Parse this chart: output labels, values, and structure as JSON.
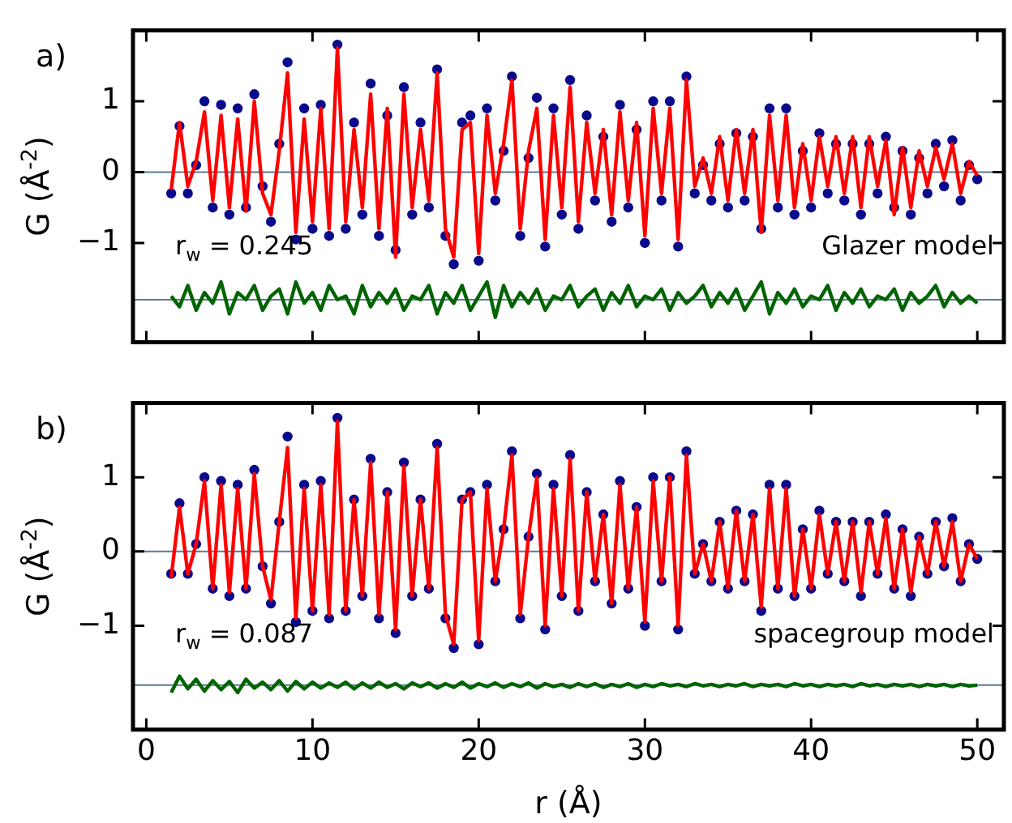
{
  "chart_data": [
    {
      "type": "scatter",
      "ylabel": "G (Å$^{-2}$)",
      "annotations": [
        "a)",
        "r$_{w}$ = 0.245",
        "Glazer model"
      ],
      "xlim": [
        -0.8,
        51.6
      ],
      "ylim": [
        -2.4,
        2.0
      ],
      "xticks": [
        0,
        10,
        20,
        30,
        40,
        50
      ],
      "yticks": [
        -1,
        0,
        1
      ],
      "tick_labels": "y",
      "line_style": "solid",
      "ref_lines": [
        {
          "axis": "y",
          "value": 0,
          "color": "#5a7a9a"
        },
        {
          "axis": "y",
          "value": -1.8,
          "color": "#5a7a9a"
        }
      ],
      "x": [
        1.5,
        2,
        2.5,
        3,
        3.5,
        4,
        4.5,
        5,
        5.5,
        6,
        6.5,
        7,
        7.5,
        8,
        8.5,
        9,
        9.5,
        10,
        10.5,
        11,
        11.5,
        12,
        12.5,
        13,
        13.5,
        14,
        14.5,
        15,
        15.5,
        16,
        16.5,
        17,
        17.5,
        18,
        18.5,
        19,
        19.5,
        20,
        20.5,
        21,
        21.5,
        22,
        22.5,
        23,
        23.5,
        24,
        24.5,
        25,
        25.5,
        26,
        26.5,
        27,
        27.5,
        28,
        28.5,
        29,
        29.5,
        30,
        30.5,
        31,
        31.5,
        32,
        32.5,
        33,
        33.5,
        34,
        34.5,
        35,
        35.5,
        36,
        36.5,
        37,
        37.5,
        38,
        38.5,
        39,
        39.5,
        40,
        40.5,
        41,
        41.5,
        42,
        42.5,
        43,
        43.5,
        44,
        44.5,
        45,
        45.5,
        46,
        46.5,
        47,
        47.5,
        48,
        48.5,
        49,
        49.5,
        50
      ],
      "series": [
        {
          "type": "scatter",
          "marker": "circle",
          "color": "#0a0a8c",
          "values": [
            -0.3,
            0.65,
            -0.3,
            0.1,
            1.0,
            -0.5,
            0.95,
            -0.6,
            0.9,
            -0.5,
            1.1,
            -0.2,
            -0.7,
            0.4,
            1.55,
            -0.95,
            0.9,
            -0.8,
            0.95,
            -0.9,
            1.8,
            -0.8,
            0.7,
            -0.6,
            1.25,
            -0.9,
            0.8,
            -1.1,
            1.2,
            -0.6,
            0.7,
            -0.5,
            1.45,
            -0.9,
            -1.3,
            0.7,
            0.8,
            -1.25,
            0.9,
            -0.4,
            0.3,
            1.35,
            -0.9,
            0.2,
            1.05,
            -1.05,
            0.9,
            -0.6,
            1.3,
            -0.8,
            0.8,
            -0.4,
            0.5,
            -0.7,
            0.95,
            -0.5,
            0.6,
            -1.0,
            1.0,
            -0.4,
            1.0,
            -1.05,
            1.35,
            -0.3,
            0.1,
            -0.4,
            0.4,
            -0.5,
            0.55,
            -0.4,
            0.5,
            -0.8,
            0.9,
            -0.5,
            0.9,
            -0.6,
            0.3,
            -0.5,
            0.55,
            -0.3,
            0.4,
            -0.4,
            0.4,
            -0.6,
            0.4,
            -0.3,
            0.5,
            -0.5,
            0.3,
            -0.6,
            0.2,
            -0.3,
            0.4,
            -0.2,
            0.45,
            -0.4,
            0.1,
            -0.1
          ]
        },
        {
          "type": "line",
          "marker": "none",
          "color": "#ff0000",
          "values": [
            -0.25,
            0.7,
            -0.2,
            0.15,
            0.85,
            -0.4,
            0.8,
            -0.5,
            0.75,
            -0.55,
            1.0,
            -0.3,
            -0.6,
            0.3,
            1.4,
            -0.85,
            0.75,
            -0.7,
            0.9,
            -0.8,
            1.75,
            -0.7,
            0.6,
            -0.5,
            1.1,
            -0.8,
            0.9,
            -1.2,
            1.1,
            -0.5,
            0.6,
            -0.4,
            1.4,
            -0.8,
            -1.2,
            0.6,
            0.7,
            -1.15,
            0.8,
            -0.3,
            0.4,
            1.3,
            -0.8,
            0.3,
            0.9,
            -0.95,
            0.8,
            -0.5,
            1.2,
            -0.7,
            0.7,
            -0.3,
            0.6,
            -0.6,
            0.85,
            -0.4,
            0.7,
            -0.9,
            0.9,
            -0.3,
            0.9,
            -0.95,
            1.3,
            -0.2,
            0.2,
            -0.3,
            0.5,
            -0.4,
            0.6,
            -0.3,
            0.6,
            -0.85,
            0.8,
            -0.4,
            0.8,
            -0.5,
            0.4,
            -0.4,
            0.5,
            -0.2,
            0.5,
            -0.3,
            0.5,
            -0.5,
            0.5,
            -0.2,
            0.45,
            -0.6,
            0.35,
            -0.5,
            0.3,
            -0.2,
            0.35,
            -0.1,
            0.4,
            -0.3,
            0.15,
            -0.05
          ]
        },
        {
          "type": "line",
          "marker": "none",
          "color": "#006400",
          "values": [
            -1.75,
            -1.9,
            -1.6,
            -1.95,
            -1.7,
            -1.85,
            -1.55,
            -2.0,
            -1.7,
            -1.8,
            -1.6,
            -1.95,
            -1.75,
            -1.65,
            -2.0,
            -1.55,
            -1.85,
            -1.7,
            -1.95,
            -1.6,
            -1.8,
            -1.75,
            -2.0,
            -1.6,
            -1.9,
            -1.7,
            -1.85,
            -1.65,
            -1.95,
            -1.75,
            -1.8,
            -1.6,
            -2.0,
            -1.7,
            -1.85,
            -1.6,
            -1.95,
            -1.75,
            -1.55,
            -2.05,
            -1.6,
            -1.9,
            -1.7,
            -1.85,
            -1.65,
            -1.95,
            -1.75,
            -1.8,
            -1.6,
            -1.9,
            -1.75,
            -1.65,
            -1.95,
            -1.7,
            -1.85,
            -1.6,
            -1.9,
            -1.75,
            -1.8,
            -1.65,
            -1.95,
            -1.7,
            -1.85,
            -1.75,
            -1.6,
            -1.9,
            -1.7,
            -1.85,
            -1.65,
            -1.95,
            -1.75,
            -1.55,
            -2.0,
            -1.7,
            -1.85,
            -1.65,
            -1.9,
            -1.75,
            -1.8,
            -1.6,
            -1.95,
            -1.7,
            -1.85,
            -1.65,
            -1.9,
            -1.75,
            -1.8,
            -1.65,
            -1.95,
            -1.7,
            -1.85,
            -1.75,
            -1.6,
            -1.9,
            -1.7,
            -1.85,
            -1.75,
            -1.85
          ]
        }
      ]
    },
    {
      "type": "scatter",
      "ylabel": "G (Å$^{-2}$)",
      "xlabel": "r (Å)",
      "annotations": [
        "b)",
        "r$_{w}$ = 0.087",
        "spacegroup model"
      ],
      "xlim": [
        -0.8,
        51.6
      ],
      "ylim": [
        -2.4,
        2.0
      ],
      "xticks": [
        0,
        10,
        20,
        30,
        40,
        50
      ],
      "yticks": [
        -1,
        0,
        1
      ],
      "line_style": "solid",
      "ref_lines": [
        {
          "axis": "y",
          "value": 0,
          "color": "#5a7a9a"
        },
        {
          "axis": "y",
          "value": -1.8,
          "color": "#5a7a9a"
        }
      ],
      "x": [
        1.5,
        2,
        2.5,
        3,
        3.5,
        4,
        4.5,
        5,
        5.5,
        6,
        6.5,
        7,
        7.5,
        8,
        8.5,
        9,
        9.5,
        10,
        10.5,
        11,
        11.5,
        12,
        12.5,
        13,
        13.5,
        14,
        14.5,
        15,
        15.5,
        16,
        16.5,
        17,
        17.5,
        18,
        18.5,
        19,
        19.5,
        20,
        20.5,
        21,
        21.5,
        22,
        22.5,
        23,
        23.5,
        24,
        24.5,
        25,
        25.5,
        26,
        26.5,
        27,
        27.5,
        28,
        28.5,
        29,
        29.5,
        30,
        30.5,
        31,
        31.5,
        32,
        32.5,
        33,
        33.5,
        34,
        34.5,
        35,
        35.5,
        36,
        36.5,
        37,
        37.5,
        38,
        38.5,
        39,
        39.5,
        40,
        40.5,
        41,
        41.5,
        42,
        42.5,
        43,
        43.5,
        44,
        44.5,
        45,
        45.5,
        46,
        46.5,
        47,
        47.5,
        48,
        48.5,
        49,
        49.5,
        50
      ],
      "series": [
        {
          "type": "scatter",
          "marker": "circle",
          "color": "#0a0a8c",
          "values": [
            -0.3,
            0.65,
            -0.3,
            0.1,
            1.0,
            -0.5,
            0.95,
            -0.6,
            0.9,
            -0.5,
            1.1,
            -0.2,
            -0.7,
            0.4,
            1.55,
            -0.95,
            0.9,
            -0.8,
            0.95,
            -0.9,
            1.8,
            -0.8,
            0.7,
            -0.6,
            1.25,
            -0.9,
            0.8,
            -1.1,
            1.2,
            -0.6,
            0.7,
            -0.5,
            1.45,
            -0.9,
            -1.3,
            0.7,
            0.8,
            -1.25,
            0.9,
            -0.4,
            0.3,
            1.35,
            -0.9,
            0.2,
            1.05,
            -1.05,
            0.9,
            -0.6,
            1.3,
            -0.8,
            0.8,
            -0.4,
            0.5,
            -0.7,
            0.95,
            -0.5,
            0.6,
            -1.0,
            1.0,
            -0.4,
            1.0,
            -1.05,
            1.35,
            -0.3,
            0.1,
            -0.4,
            0.4,
            -0.5,
            0.55,
            -0.4,
            0.5,
            -0.8,
            0.9,
            -0.5,
            0.9,
            -0.6,
            0.3,
            -0.5,
            0.55,
            -0.3,
            0.4,
            -0.4,
            0.4,
            -0.6,
            0.4,
            -0.3,
            0.5,
            -0.5,
            0.3,
            -0.6,
            0.2,
            -0.3,
            0.4,
            -0.2,
            0.45,
            -0.4,
            0.1,
            -0.1
          ]
        },
        {
          "type": "line",
          "marker": "none",
          "color": "#ff0000",
          "values": [
            -0.35,
            0.6,
            -0.3,
            0.1,
            0.95,
            -0.5,
            0.9,
            -0.55,
            0.85,
            -0.5,
            1.05,
            -0.2,
            -0.65,
            0.4,
            1.4,
            -0.9,
            0.85,
            -0.8,
            0.9,
            -0.85,
            1.75,
            -0.8,
            0.7,
            -0.6,
            1.2,
            -0.85,
            0.8,
            -1.05,
            1.15,
            -0.6,
            0.7,
            -0.5,
            1.4,
            -0.85,
            -1.25,
            0.7,
            0.8,
            -1.2,
            0.85,
            -0.4,
            0.3,
            1.3,
            -0.85,
            0.2,
            1.0,
            -1.0,
            0.85,
            -0.6,
            1.25,
            -0.8,
            0.8,
            -0.4,
            0.5,
            -0.7,
            0.9,
            -0.5,
            0.6,
            -0.95,
            0.95,
            -0.4,
            1.0,
            -1.0,
            1.3,
            -0.3,
            0.1,
            -0.4,
            0.4,
            -0.5,
            0.55,
            -0.4,
            0.5,
            -0.75,
            0.85,
            -0.5,
            0.85,
            -0.6,
            0.3,
            -0.5,
            0.5,
            -0.3,
            0.4,
            -0.4,
            0.4,
            -0.55,
            0.4,
            -0.3,
            0.45,
            -0.5,
            0.3,
            -0.55,
            0.2,
            -0.3,
            0.4,
            -0.2,
            0.4,
            -0.4,
            0.1,
            -0.1
          ]
        },
        {
          "type": "line",
          "marker": "none",
          "color": "#006400",
          "values": [
            -1.9,
            -1.68,
            -1.85,
            -1.72,
            -1.88,
            -1.74,
            -1.86,
            -1.75,
            -1.9,
            -1.72,
            -1.84,
            -1.76,
            -1.86,
            -1.74,
            -1.88,
            -1.75,
            -1.85,
            -1.76,
            -1.84,
            -1.77,
            -1.83,
            -1.76,
            -1.85,
            -1.77,
            -1.84,
            -1.76,
            -1.83,
            -1.78,
            -1.85,
            -1.77,
            -1.82,
            -1.77,
            -1.84,
            -1.78,
            -1.83,
            -1.76,
            -1.84,
            -1.78,
            -1.82,
            -1.77,
            -1.83,
            -1.78,
            -1.82,
            -1.77,
            -1.84,
            -1.78,
            -1.82,
            -1.79,
            -1.83,
            -1.78,
            -1.82,
            -1.78,
            -1.83,
            -1.79,
            -1.82,
            -1.78,
            -1.83,
            -1.79,
            -1.82,
            -1.78,
            -1.81,
            -1.79,
            -1.82,
            -1.78,
            -1.81,
            -1.79,
            -1.82,
            -1.79,
            -1.81,
            -1.78,
            -1.82,
            -1.79,
            -1.81,
            -1.79,
            -1.82,
            -1.78,
            -1.81,
            -1.79,
            -1.82,
            -1.79,
            -1.81,
            -1.79,
            -1.82,
            -1.78,
            -1.81,
            -1.79,
            -1.82,
            -1.79,
            -1.81,
            -1.79,
            -1.82,
            -1.79,
            -1.81,
            -1.79,
            -1.82,
            -1.79,
            -1.81,
            -1.8
          ]
        }
      ]
    }
  ]
}
